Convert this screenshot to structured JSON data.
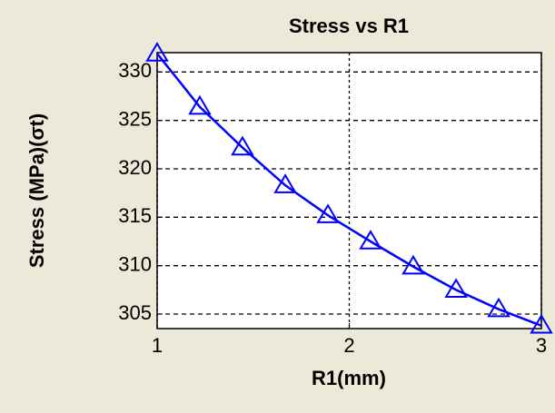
{
  "chart_data": {
    "type": "line",
    "title": "Stress vs R1",
    "xlabel": "R1(mm)",
    "ylabel": "Stress (MPa)(σt)",
    "x": [
      1,
      1.222,
      1.444,
      1.667,
      1.889,
      2.111,
      2.333,
      2.556,
      2.778,
      3
    ],
    "series": [
      {
        "color": "#0000ff",
        "marker": "triangle",
        "values": [
          331.9,
          326.4,
          322.2,
          318.3,
          315.2,
          312.5,
          309.9,
          307.5,
          305.5,
          303.8
        ]
      }
    ],
    "xlim": [
      1,
      3
    ],
    "xticks": [
      1,
      2,
      3
    ],
    "ylim": [
      303.5,
      332
    ],
    "yticks": [
      305,
      310,
      315,
      320,
      325,
      330
    ],
    "grid": true
  }
}
